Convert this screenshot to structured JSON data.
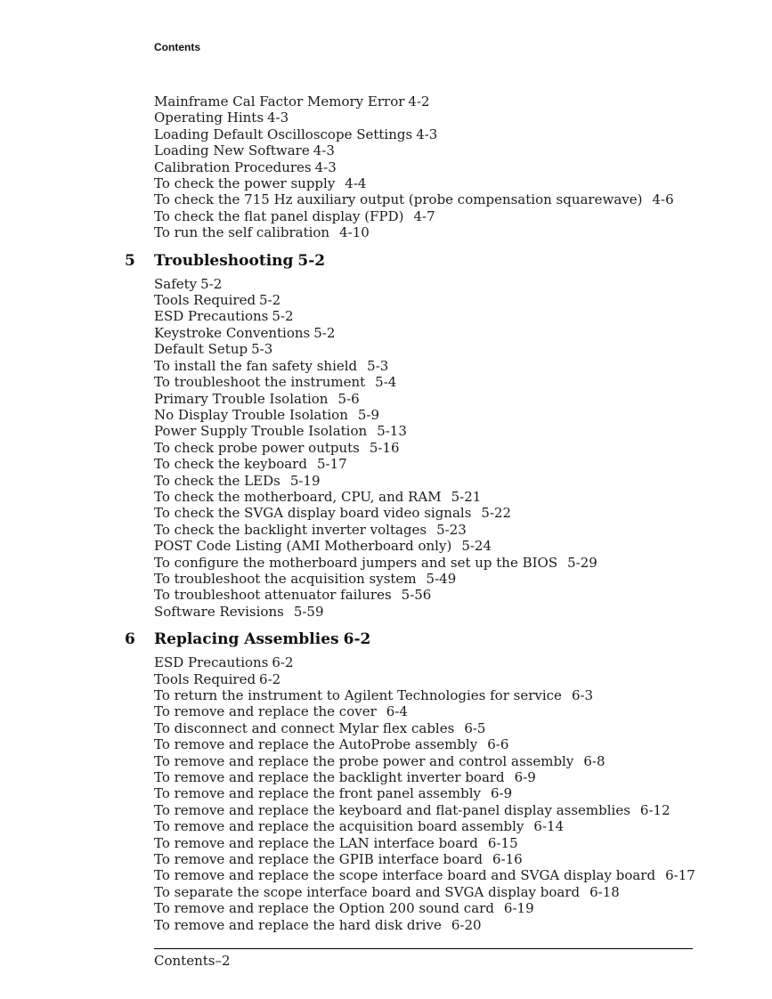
{
  "page": {
    "header_label": "Contents",
    "footer_label": "Contents–2"
  },
  "toc": {
    "sections": [
      {
        "number": "",
        "title": "",
        "page": "",
        "items": [
          {
            "label": "Mainframe Cal Factor Memory Error",
            "page": "4-2",
            "kind": "topic"
          },
          {
            "label": "Operating Hints",
            "page": "4-3",
            "kind": "topic"
          },
          {
            "label": "Loading Default Oscilloscope Settings",
            "page": "4-3",
            "kind": "topic"
          },
          {
            "label": "Loading New Software",
            "page": "4-3",
            "kind": "topic"
          },
          {
            "label": "Calibration Procedures",
            "page": "4-3",
            "kind": "topic"
          },
          {
            "label": "To check the power supply",
            "page": "4-4",
            "kind": "task"
          },
          {
            "label": "To check the 715 Hz auxiliary output (probe compensation squarewave)",
            "page": "4-6",
            "kind": "task"
          },
          {
            "label": "To check the flat panel display (FPD)",
            "page": "4-7",
            "kind": "task"
          },
          {
            "label": "To run the self calibration",
            "page": "4-10",
            "kind": "task"
          }
        ]
      },
      {
        "number": "5",
        "title": "Troubleshooting",
        "page": "5-2",
        "items": [
          {
            "label": "Safety",
            "page": "5-2",
            "kind": "topic"
          },
          {
            "label": "Tools Required",
            "page": "5-2",
            "kind": "topic"
          },
          {
            "label": "ESD Precautions",
            "page": "5-2",
            "kind": "topic"
          },
          {
            "label": "Keystroke Conventions",
            "page": "5-2",
            "kind": "topic"
          },
          {
            "label": "Default Setup",
            "page": "5-3",
            "kind": "topic"
          },
          {
            "label": "To install the fan safety shield",
            "page": "5-3",
            "kind": "task"
          },
          {
            "label": "To troubleshoot the instrument",
            "page": "5-4",
            "kind": "task"
          },
          {
            "label": "Primary Trouble Isolation",
            "page": "5-6",
            "kind": "task"
          },
          {
            "label": "No Display Trouble Isolation",
            "page": "5-9",
            "kind": "task"
          },
          {
            "label": "Power Supply Trouble Isolation",
            "page": "5-13",
            "kind": "task"
          },
          {
            "label": "To check probe power outputs",
            "page": "5-16",
            "kind": "task"
          },
          {
            "label": "To check the keyboard",
            "page": "5-17",
            "kind": "task"
          },
          {
            "label": "To check the LEDs",
            "page": "5-19",
            "kind": "task"
          },
          {
            "label": "To check the motherboard, CPU, and RAM",
            "page": "5-21",
            "kind": "task"
          },
          {
            "label": "To check the SVGA display board video signals",
            "page": "5-22",
            "kind": "task"
          },
          {
            "label": "To check the backlight inverter voltages",
            "page": "5-23",
            "kind": "task"
          },
          {
            "label": "POST Code Listing (AMI Motherboard only)",
            "page": "5-24",
            "kind": "task"
          },
          {
            "label": "To configure the motherboard jumpers and set up the BIOS",
            "page": "5-29",
            "kind": "task"
          },
          {
            "label": "To troubleshoot the acquisition system",
            "page": "5-49",
            "kind": "task"
          },
          {
            "label": "To troubleshoot attenuator failures",
            "page": "5-56",
            "kind": "task"
          },
          {
            "label": "Software Revisions",
            "page": "5-59",
            "kind": "task"
          }
        ]
      },
      {
        "number": "6",
        "title": "Replacing Assemblies",
        "page": "6-2",
        "items": [
          {
            "label": "ESD Precautions",
            "page": "6-2",
            "kind": "topic"
          },
          {
            "label": "Tools Required",
            "page": "6-2",
            "kind": "topic"
          },
          {
            "label": "To return the instrument to Agilent Technologies for service",
            "page": "6-3",
            "kind": "task"
          },
          {
            "label": "To remove and replace the cover",
            "page": "6-4",
            "kind": "task"
          },
          {
            "label": "To disconnect and connect Mylar flex cables",
            "page": "6-5",
            "kind": "task"
          },
          {
            "label": "To remove and replace the AutoProbe assembly",
            "page": "6-6",
            "kind": "task"
          },
          {
            "label": "To remove and replace the probe power and control assembly",
            "page": "6-8",
            "kind": "task"
          },
          {
            "label": "To remove and replace the backlight inverter board",
            "page": "6-9",
            "kind": "task"
          },
          {
            "label": "To remove and replace the front panel assembly",
            "page": "6-9",
            "kind": "task"
          },
          {
            "label": "To remove and replace the keyboard and flat-panel display assemblies",
            "page": "6-12",
            "kind": "task"
          },
          {
            "label": "To remove and replace the acquisition board assembly",
            "page": "6-14",
            "kind": "task"
          },
          {
            "label": "To remove and replace the LAN interface board",
            "page": "6-15",
            "kind": "task"
          },
          {
            "label": "To remove and replace the GPIB interface board",
            "page": "6-16",
            "kind": "task"
          },
          {
            "label": "To remove and replace the scope interface board and SVGA display board",
            "page": "6-17",
            "kind": "task"
          },
          {
            "label": "To separate the scope interface board and SVGA display board",
            "page": "6-18",
            "kind": "task"
          },
          {
            "label": "To remove and replace the Option 200 sound card",
            "page": "6-19",
            "kind": "task"
          },
          {
            "label": "To remove and replace the hard disk drive",
            "page": "6-20",
            "kind": "task"
          }
        ]
      }
    ]
  }
}
